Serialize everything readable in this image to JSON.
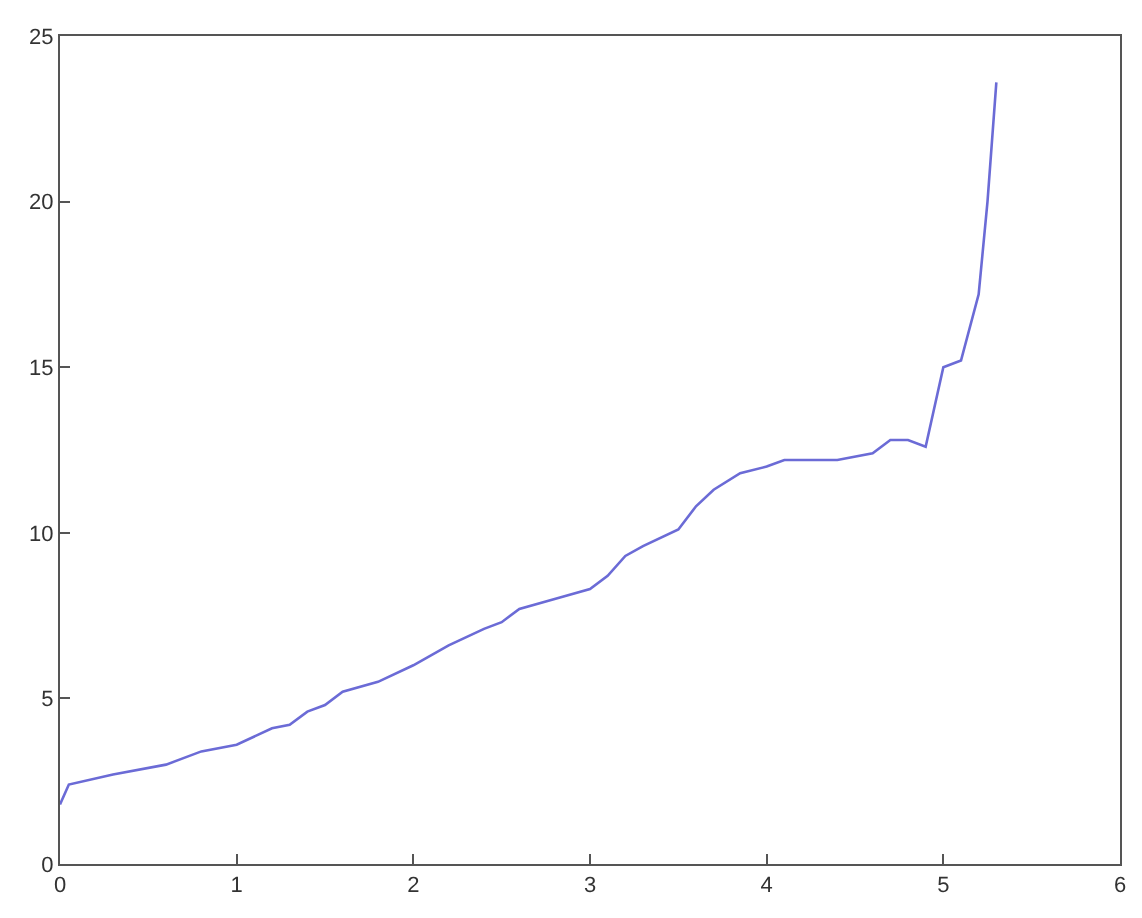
{
  "chart_data": {
    "type": "line",
    "x": [
      0,
      0.05,
      0.3,
      0.6,
      0.8,
      1.0,
      1.2,
      1.3,
      1.4,
      1.5,
      1.6,
      1.8,
      2.0,
      2.2,
      2.4,
      2.5,
      2.6,
      2.8,
      3.0,
      3.1,
      3.2,
      3.3,
      3.5,
      3.6,
      3.7,
      3.85,
      4.0,
      4.1,
      4.4,
      4.6,
      4.7,
      4.8,
      4.9,
      5.0,
      5.1,
      5.2,
      5.25,
      5.3
    ],
    "series": [
      {
        "color": "#6b6bd6",
        "values": [
          1.8,
          2.4,
          2.7,
          3.0,
          3.4,
          3.6,
          4.1,
          4.2,
          4.6,
          4.8,
          5.2,
          5.5,
          6.0,
          6.6,
          7.1,
          7.3,
          7.7,
          8.0,
          8.3,
          8.7,
          9.3,
          9.6,
          10.1,
          10.8,
          11.3,
          11.8,
          12.0,
          12.2,
          12.2,
          12.4,
          12.8,
          12.8,
          12.6,
          15.0,
          15.2,
          17.2,
          20.0,
          23.6
        ]
      }
    ],
    "xlim": [
      0,
      6
    ],
    "xticks": [
      0,
      1,
      2,
      3,
      4,
      5,
      6
    ],
    "ylim": [
      0,
      25
    ],
    "yticks": [
      0,
      5,
      10,
      15,
      20,
      25
    ],
    "grid": false,
    "marker": "none",
    "line_style": "solid"
  }
}
